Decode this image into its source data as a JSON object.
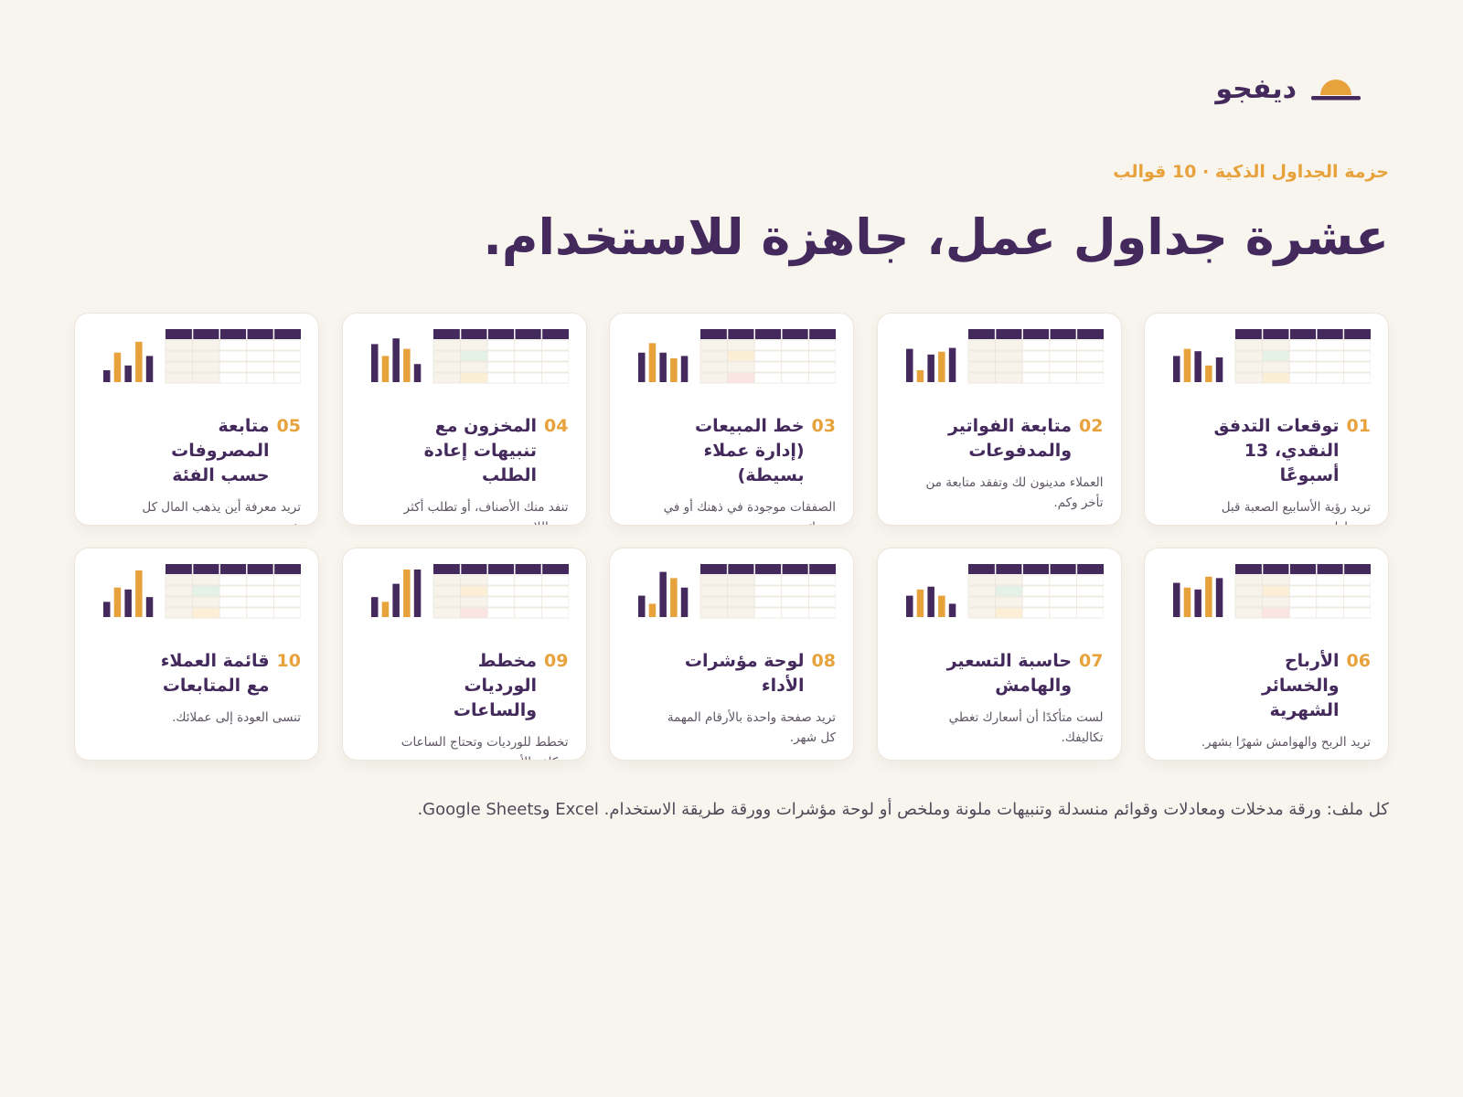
{
  "brand": {
    "name": "ديفجو",
    "logo_icon": "sunrise-logo-icon",
    "colors": {
      "sun": "#e7a23c",
      "ink": "#442a5c"
    }
  },
  "eyebrow": "حزمة الجداول الذكية · 10 قوالب",
  "headline": "عشرة جداول عمل، جاهزة للاستخدام.",
  "colors": {
    "background": "#f8f5ef",
    "primary": "#442a5c",
    "accent": "#e7a23c",
    "card": "#ffffff",
    "highlight_green": "#e4f1e6",
    "highlight_yellow": "#fcefd6",
    "highlight_red": "#fbe4e2"
  },
  "cards": [
    {
      "number": "01",
      "title": "توقعات التدفق النقدي، 13 أسبوعًا",
      "description": "تريد رؤية الأسابيع الصعبة قبل وصولها.",
      "thumbnail": {
        "icon": "spreadsheet-thumbnail",
        "bars": [
          0.55,
          0.7,
          0.65,
          0.35,
          0.52
        ],
        "bar_colors": [
          "p",
          "a",
          "p",
          "a",
          "p"
        ],
        "highlights": [
          null,
          "green",
          null,
          "yellow"
        ]
      }
    },
    {
      "number": "02",
      "title": "متابعة الفواتير والمدفوعات",
      "description": "العملاء مدينون لك وتفقد متابعة من تأخر وكم.",
      "thumbnail": {
        "icon": "spreadsheet-thumbnail",
        "bars": [
          0.7,
          0.25,
          0.58,
          0.64,
          0.72
        ],
        "bar_colors": [
          "p",
          "a",
          "p",
          "a",
          "p"
        ],
        "highlights": [
          null,
          null,
          null,
          null
        ]
      }
    },
    {
      "number": "03",
      "title": "خط المبيعات (إدارة عملاء بسيطة)",
      "description": "الصفقات موجودة في ذهنك أو في بريدك.",
      "thumbnail": {
        "icon": "spreadsheet-thumbnail",
        "bars": [
          0.62,
          0.82,
          0.62,
          0.5,
          0.55
        ],
        "bar_colors": [
          "p",
          "a",
          "p",
          "a",
          "p"
        ],
        "highlights": [
          null,
          "yellow",
          null,
          "red"
        ]
      }
    },
    {
      "number": "04",
      "title": "المخزون مع تنبيهات إعادة الطلب",
      "description": "تنفد منك الأصناف، أو تطلب أكثر من اللازم.",
      "thumbnail": {
        "icon": "spreadsheet-thumbnail",
        "bars": [
          0.8,
          0.55,
          0.92,
          0.7,
          0.38
        ],
        "bar_colors": [
          "p",
          "a",
          "p",
          "a",
          "p"
        ],
        "highlights": [
          null,
          "green",
          null,
          "yellow"
        ]
      }
    },
    {
      "number": "05",
      "title": "متابعة المصروفات حسب الفئة",
      "description": "تريد معرفة أين يذهب المال كل شهر.",
      "thumbnail": {
        "icon": "spreadsheet-thumbnail",
        "bars": [
          0.25,
          0.62,
          0.35,
          0.85,
          0.55
        ],
        "bar_colors": [
          "p",
          "a",
          "p",
          "a",
          "p"
        ],
        "highlights": [
          null,
          null,
          null,
          null
        ]
      }
    },
    {
      "number": "06",
      "title": "الأرباح والخسائر الشهرية",
      "description": "تريد الربح والهوامش شهرًا بشهر.",
      "thumbnail": {
        "icon": "spreadsheet-thumbnail",
        "bars": [
          0.72,
          0.62,
          0.58,
          0.85,
          0.82
        ],
        "bar_colors": [
          "p",
          "a",
          "p",
          "a",
          "p"
        ],
        "highlights": [
          null,
          "yellow",
          null,
          "red"
        ]
      }
    },
    {
      "number": "07",
      "title": "حاسبة التسعير والهامش",
      "description": "لست متأكدًا أن أسعارك تغطي تكاليفك.",
      "thumbnail": {
        "icon": "spreadsheet-thumbnail",
        "bars": [
          0.45,
          0.58,
          0.64,
          0.45,
          0.28
        ],
        "bar_colors": [
          "p",
          "a",
          "p",
          "a",
          "p"
        ],
        "highlights": [
          null,
          "green",
          null,
          "yellow"
        ]
      }
    },
    {
      "number": "08",
      "title": "لوحة مؤشرات الأداء",
      "description": "تريد صفحة واحدة بالأرقام المهمة كل شهر.",
      "thumbnail": {
        "icon": "spreadsheet-thumbnail",
        "bars": [
          0.45,
          0.28,
          0.95,
          0.82,
          0.62
        ],
        "bar_colors": [
          "p",
          "a",
          "p",
          "a",
          "p"
        ],
        "highlights": [
          null,
          null,
          null,
          null
        ]
      }
    },
    {
      "number": "09",
      "title": "مخطط الورديات والساعات",
      "description": "تخطط للورديات وتحتاج الساعات وتكلفة الأجور.",
      "thumbnail": {
        "icon": "spreadsheet-thumbnail",
        "bars": [
          0.42,
          0.32,
          0.7,
          1.0,
          1.0
        ],
        "bar_colors": [
          "p",
          "a",
          "p",
          "a",
          "p"
        ],
        "highlights": [
          null,
          "yellow",
          null,
          "red"
        ]
      }
    },
    {
      "number": "10",
      "title": "قائمة العملاء مع المتابعات",
      "description": "تنسى العودة إلى عملائك.",
      "thumbnail": {
        "icon": "spreadsheet-thumbnail",
        "bars": [
          0.32,
          0.62,
          0.58,
          0.98,
          0.42
        ],
        "bar_colors": [
          "p",
          "a",
          "p",
          "a",
          "p"
        ],
        "highlights": [
          null,
          "green",
          null,
          "yellow"
        ]
      }
    }
  ],
  "footnote": "كل ملف: ورقة مدخلات ومعادلات وقوائم منسدلة وتنبيهات ملونة وملخص أو لوحة مؤشرات وورقة طريقة الاستخدام. Excel وGoogle Sheets."
}
